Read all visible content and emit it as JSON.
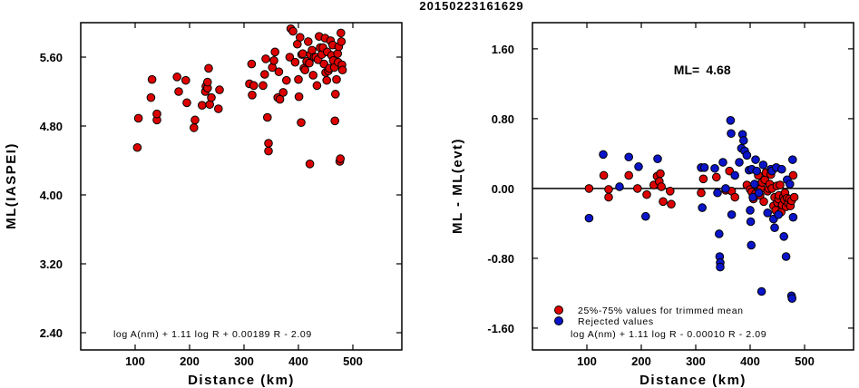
{
  "page_title": "20150223161629",
  "chart_data": [
    {
      "type": "scatter",
      "xlabel": "Distance (km)",
      "ylabel": "ML(IASPEI)",
      "xlim": [
        0,
        590
      ],
      "ylim": [
        2.2,
        6.0
      ],
      "xticks": [
        100,
        200,
        300,
        400,
        500
      ],
      "yticks": [
        2.4,
        3.2,
        4.0,
        4.8,
        5.6
      ],
      "ytick_labels": [
        "2.40",
        "3.20",
        "4.00",
        "4.80",
        "5.60"
      ],
      "annotation": "log A(nm) + 1.11 log R + 0.00189 R - 2.09",
      "marker_color": "#dd0000",
      "points": [
        [
          104,
          4.55
        ],
        [
          106,
          4.89
        ],
        [
          129,
          5.13
        ],
        [
          131,
          5.34
        ],
        [
          140,
          4.87
        ],
        [
          140,
          4.94
        ],
        [
          177,
          5.37
        ],
        [
          180,
          5.2
        ],
        [
          193,
          5.33
        ],
        [
          195,
          5.07
        ],
        [
          208,
          4.78
        ],
        [
          210,
          4.87
        ],
        [
          223,
          5.04
        ],
        [
          229,
          5.2
        ],
        [
          230,
          5.26
        ],
        [
          233,
          5.24
        ],
        [
          233,
          5.31
        ],
        [
          235,
          5.47
        ],
        [
          237,
          5.05
        ],
        [
          240,
          5.13
        ],
        [
          253,
          5.0
        ],
        [
          255,
          5.22
        ],
        [
          310,
          5.29
        ],
        [
          314,
          5.52
        ],
        [
          315,
          5.16
        ],
        [
          318,
          5.27
        ],
        [
          335,
          5.27
        ],
        [
          338,
          5.4
        ],
        [
          340,
          5.58
        ],
        [
          343,
          4.9
        ],
        [
          345,
          4.51
        ],
        [
          345,
          4.6
        ],
        [
          352,
          5.48
        ],
        [
          355,
          5.56
        ],
        [
          357,
          5.66
        ],
        [
          362,
          5.13
        ],
        [
          364,
          5.43
        ],
        [
          366,
          5.11
        ],
        [
          372,
          5.19
        ],
        [
          378,
          5.33
        ],
        [
          384,
          5.6
        ],
        [
          386,
          5.93
        ],
        [
          390,
          5.9
        ],
        [
          394,
          5.54
        ],
        [
          398,
          5.75
        ],
        [
          400,
          5.34
        ],
        [
          401,
          5.14
        ],
        [
          403,
          5.83
        ],
        [
          405,
          4.84
        ],
        [
          406,
          5.63
        ],
        [
          408,
          5.64
        ],
        [
          410,
          5.47
        ],
        [
          412,
          5.45
        ],
        [
          415,
          5.55
        ],
        [
          418,
          5.78
        ],
        [
          420,
          5.53
        ],
        [
          421,
          4.36
        ],
        [
          422,
          5.63
        ],
        [
          425,
          5.68
        ],
        [
          427,
          5.39
        ],
        [
          429,
          5.6
        ],
        [
          432,
          5.6
        ],
        [
          434,
          5.27
        ],
        [
          436,
          5.57
        ],
        [
          438,
          5.84
        ],
        [
          440,
          5.71
        ],
        [
          443,
          5.63
        ],
        [
          445,
          5.71
        ],
        [
          447,
          5.52
        ],
        [
          449,
          5.82
        ],
        [
          450,
          5.42
        ],
        [
          452,
          5.33
        ],
        [
          453,
          5.66
        ],
        [
          455,
          5.44
        ],
        [
          457,
          5.47
        ],
        [
          459,
          5.79
        ],
        [
          461,
          5.62
        ],
        [
          463,
          5.74
        ],
        [
          464,
          5.56
        ],
        [
          466,
          5.48
        ],
        [
          467,
          4.86
        ],
        [
          468,
          5.17
        ],
        [
          470,
          5.34
        ],
        [
          472,
          5.64
        ],
        [
          473,
          5.54
        ],
        [
          474,
          5.72
        ],
        [
          476,
          4.39
        ],
        [
          477,
          4.42
        ],
        [
          478,
          5.88
        ],
        [
          479,
          5.78
        ],
        [
          480,
          5.51
        ],
        [
          481,
          5.45
        ]
      ]
    },
    {
      "type": "scatter",
      "xlabel": "Distance (km)",
      "ylabel": "ML - ML(evt)",
      "xlim": [
        0,
        590
      ],
      "ylim": [
        -1.85,
        1.9
      ],
      "xticks": [
        100,
        200,
        300,
        400,
        500
      ],
      "yticks": [
        -1.6,
        -0.8,
        0.0,
        0.8,
        1.6
      ],
      "ytick_labels": [
        "-1.60",
        "-0.80",
        "0.00",
        "0.80",
        "1.60"
      ],
      "zero_line": 0,
      "ml_label": "ML=",
      "ml_value": "4.68",
      "annotation": "log A(nm) + 1.11 log R - 0.00010 R - 2.09",
      "legend": [
        {
          "label": "25%-75% values for trimmed mean",
          "color": "#dd0000"
        },
        {
          "label": "Rejected values",
          "color": "#0a14c8"
        }
      ],
      "series": [
        {
          "name": "25%-75% values for trimmed mean",
          "color": "#dd0000",
          "points": [
            [
              104,
              0.0
            ],
            [
              131,
              0.15
            ],
            [
              140,
              -0.01
            ],
            [
              140,
              -0.1
            ],
            [
              177,
              0.15
            ],
            [
              193,
              0.0
            ],
            [
              210,
              -0.07
            ],
            [
              223,
              0.04
            ],
            [
              229,
              0.14
            ],
            [
              233,
              0.08
            ],
            [
              235,
              0.17
            ],
            [
              237,
              0.02
            ],
            [
              240,
              -0.15
            ],
            [
              253,
              -0.03
            ],
            [
              255,
              -0.18
            ],
            [
              310,
              -0.05
            ],
            [
              314,
              0.11
            ],
            [
              338,
              0.13
            ],
            [
              355,
              -0.02
            ],
            [
              362,
              0.2
            ],
            [
              366,
              -0.03
            ],
            [
              372,
              -0.1
            ],
            [
              394,
              0.04
            ],
            [
              400,
              -0.01
            ],
            [
              403,
              -0.04
            ],
            [
              406,
              -0.12
            ],
            [
              410,
              -0.06
            ],
            [
              412,
              0.04
            ],
            [
              415,
              0.15
            ],
            [
              418,
              -0.08
            ],
            [
              420,
              0.0
            ],
            [
              422,
              0.07
            ],
            [
              425,
              -0.15
            ],
            [
              427,
              0.1
            ],
            [
              429,
              0.18
            ],
            [
              432,
              -0.03
            ],
            [
              434,
              0.0
            ],
            [
              436,
              0.05
            ],
            [
              438,
              0.16
            ],
            [
              440,
              0.0
            ],
            [
              443,
              -0.2
            ],
            [
              445,
              -0.1
            ],
            [
              447,
              -0.25
            ],
            [
              449,
              0.03
            ],
            [
              450,
              -0.16
            ],
            [
              452,
              -0.12
            ],
            [
              453,
              -0.08
            ],
            [
              455,
              0.04
            ],
            [
              457,
              -0.27
            ],
            [
              459,
              -0.19
            ],
            [
              461,
              -0.1
            ],
            [
              463,
              -0.13
            ],
            [
              464,
              -0.05
            ],
            [
              466,
              -0.21
            ],
            [
              468,
              -0.11
            ],
            [
              470,
              -0.17
            ],
            [
              472,
              -0.12
            ],
            [
              474,
              -0.2
            ],
            [
              476,
              -0.14
            ],
            [
              479,
              0.15
            ],
            [
              481,
              -0.1
            ]
          ]
        },
        {
          "name": "Rejected values",
          "color": "#0a14c8",
          "points": [
            [
              104,
              -0.34
            ],
            [
              130,
              0.39
            ],
            [
              160,
              0.02
            ],
            [
              177,
              0.36
            ],
            [
              195,
              0.25
            ],
            [
              208,
              -0.32
            ],
            [
              230,
              0.34
            ],
            [
              310,
              0.24
            ],
            [
              312,
              -0.22
            ],
            [
              316,
              0.24
            ],
            [
              335,
              0.23
            ],
            [
              340,
              -0.05
            ],
            [
              343,
              -0.52
            ],
            [
              344,
              -0.78
            ],
            [
              345,
              -0.85
            ],
            [
              345,
              -0.9
            ],
            [
              350,
              0.3
            ],
            [
              355,
              0.0
            ],
            [
              364,
              0.78
            ],
            [
              365,
              0.63
            ],
            [
              366,
              -0.3
            ],
            [
              372,
              0.15
            ],
            [
              380,
              0.3
            ],
            [
              384,
              0.46
            ],
            [
              386,
              0.62
            ],
            [
              388,
              0.55
            ],
            [
              390,
              0.43
            ],
            [
              394,
              0.38
            ],
            [
              398,
              0.21
            ],
            [
              400,
              -0.25
            ],
            [
              401,
              -0.38
            ],
            [
              402,
              -0.65
            ],
            [
              403,
              0.22
            ],
            [
              405,
              -0.1
            ],
            [
              408,
              0.05
            ],
            [
              410,
              0.33
            ],
            [
              412,
              0.2
            ],
            [
              416,
              -0.05
            ],
            [
              421,
              -1.18
            ],
            [
              424,
              0.27
            ],
            [
              432,
              -0.28
            ],
            [
              438,
              0.22
            ],
            [
              440,
              0.2
            ],
            [
              443,
              -0.35
            ],
            [
              445,
              -0.45
            ],
            [
              448,
              0.24
            ],
            [
              452,
              -0.3
            ],
            [
              458,
              0.22
            ],
            [
              462,
              -0.55
            ],
            [
              466,
              -0.78
            ],
            [
              468,
              0.1
            ],
            [
              473,
              0.05
            ],
            [
              476,
              -1.23
            ],
            [
              477,
              -1.26
            ],
            [
              478,
              0.33
            ],
            [
              479,
              -0.33
            ]
          ]
        }
      ]
    }
  ]
}
